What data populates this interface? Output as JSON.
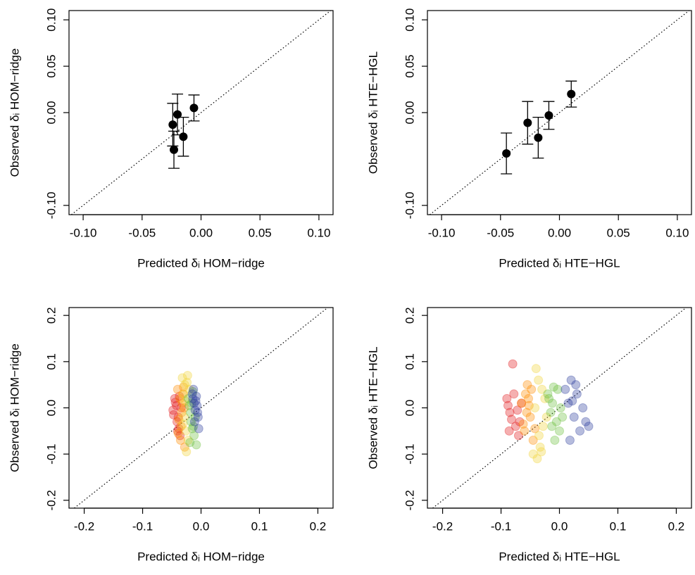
{
  "chart_data": [
    {
      "type": "errorbar",
      "xlabel": "Predicted δᵢ HOM−ridge",
      "ylabel": "Observed δᵢ HOM−ridge",
      "color": "#000000",
      "x": [
        -0.024,
        -0.023,
        -0.02,
        -0.015,
        -0.006
      ],
      "values": [
        -0.013,
        -0.04,
        -0.002,
        -0.026,
        0.005
      ],
      "errors": [
        0.023,
        0.02,
        0.022,
        0.021,
        0.014
      ],
      "xlim": [
        -0.112,
        0.112
      ],
      "ylim": [
        -0.11,
        0.11
      ],
      "xticks": [
        {
          "value": -0.1,
          "label": "-0.10"
        },
        -0.05,
        {
          "value": 0,
          "label": "0.00"
        },
        0.05,
        {
          "value": 0.1,
          "label": "0.10"
        }
      ],
      "yticks": [
        {
          "value": -0.1,
          "label": "-0.10"
        },
        {
          "value": 0,
          "label": "0.00"
        },
        0.05,
        {
          "value": 0.1,
          "label": "0.10"
        }
      ]
    },
    {
      "type": "errorbar",
      "xlabel": "Predicted δᵢ HTE−HGL",
      "ylabel": "Observed δᵢ HTE−HGL",
      "color": "#000000",
      "x": [
        -0.045,
        -0.027,
        -0.018,
        -0.009,
        0.01
      ],
      "values": [
        -0.044,
        -0.011,
        -0.027,
        -0.003,
        0.02
      ],
      "errors": [
        0.022,
        0.023,
        0.022,
        0.015,
        0.014
      ],
      "xlim": [
        -0.112,
        0.112
      ],
      "ylim": [
        -0.11,
        0.11
      ],
      "xticks": [
        {
          "value": -0.1,
          "label": "-0.10"
        },
        -0.05,
        {
          "value": 0,
          "label": "0.00"
        },
        0.05,
        {
          "value": 0.1,
          "label": "0.10"
        }
      ],
      "yticks": [
        {
          "value": -0.1,
          "label": "-0.10"
        },
        {
          "value": 0,
          "label": "0.00"
        },
        0.05,
        {
          "value": 0.1,
          "label": "0.10"
        }
      ]
    },
    {
      "type": "scatter",
      "xlabel": "Predicted δᵢ HOM−ridge",
      "ylabel": "Observed δᵢ HOM−ridge",
      "alpha": 0.35,
      "xlim": [
        -0.226,
        0.226
      ],
      "ylim": [
        -0.217,
        0.217
      ],
      "xticks": [
        -0.2,
        -0.1,
        {
          "value": 0,
          "label": "0.0"
        },
        0.1,
        0.2
      ],
      "yticks": [
        -0.2,
        -0.1,
        {
          "value": 0,
          "label": "0.0"
        },
        0.1,
        0.2
      ],
      "series": [
        {
          "color": "#e31a1c",
          "x": [
            -0.048,
            -0.044,
            -0.041,
            -0.038,
            -0.045,
            -0.036,
            -0.042,
            -0.039,
            -0.047,
            -0.034,
            -0.04,
            -0.037
          ],
          "values": [
            -0.005,
            0.012,
            -0.03,
            -0.045,
            0.02,
            -0.06,
            0.005,
            -0.02,
            -0.015,
            0.0,
            -0.05,
            0.025
          ]
        },
        {
          "color": "#ff8c00",
          "x": [
            -0.04,
            -0.035,
            -0.032,
            -0.038,
            -0.03,
            -0.034,
            -0.036,
            -0.028,
            -0.033,
            -0.031,
            -0.039,
            -0.029
          ],
          "values": [
            0.04,
            -0.07,
            0.01,
            -0.025,
            0.045,
            -0.04,
            0.02,
            -0.085,
            -0.01,
            0.03,
            -0.055,
            0.0
          ]
        },
        {
          "color": "#f2d43a",
          "x": [
            -0.032,
            -0.028,
            -0.025,
            -0.03,
            -0.022,
            -0.027,
            -0.024,
            -0.029,
            -0.026,
            -0.02,
            -0.031,
            -0.023
          ],
          "values": [
            0.065,
            0.05,
            -0.095,
            0.03,
            -0.07,
            0.015,
            0.055,
            -0.02,
            -0.05,
            0.04,
            -0.035,
            0.07
          ]
        },
        {
          "color": "#6cbf3f",
          "x": [
            -0.022,
            -0.018,
            -0.015,
            -0.02,
            -0.012,
            -0.017,
            -0.014,
            -0.019,
            -0.01,
            -0.016,
            -0.013,
            -0.008
          ],
          "values": [
            0.02,
            -0.01,
            -0.045,
            0.005,
            -0.06,
            -0.03,
            0.035,
            -0.075,
            -0.02,
            0.01,
            -0.04,
            -0.08
          ]
        },
        {
          "color": "#2f3f9e",
          "x": [
            -0.015,
            -0.012,
            -0.01,
            -0.008,
            -0.005,
            -0.013,
            -0.007,
            -0.011,
            -0.009,
            -0.006,
            -0.004,
            -0.014
          ],
          "values": [
            0.03,
            0.01,
            -0.005,
            0.025,
            -0.02,
            0.04,
            0.005,
            -0.03,
            0.015,
            -0.01,
            -0.045,
            0.02
          ]
        }
      ]
    },
    {
      "type": "scatter",
      "xlabel": "Predicted δᵢ HTE−HGL",
      "ylabel": "Observed δᵢ HTE−HGL",
      "alpha": 0.35,
      "xlim": [
        -0.226,
        0.226
      ],
      "ylim": [
        -0.217,
        0.217
      ],
      "xticks": [
        -0.2,
        -0.1,
        {
          "value": 0,
          "label": "0.0"
        },
        0.1,
        0.2
      ],
      "yticks": [
        -0.2,
        -0.1,
        {
          "value": 0,
          "label": "0.0"
        },
        0.1,
        0.2
      ],
      "series": [
        {
          "color": "#e31a1c",
          "x": [
            -0.09,
            -0.085,
            -0.08,
            -0.075,
            -0.088,
            -0.07,
            -0.082,
            -0.078,
            -0.072,
            -0.068,
            -0.086,
            -0.065
          ],
          "values": [
            0.02,
            -0.01,
            0.095,
            -0.04,
            0.005,
            -0.06,
            -0.025,
            0.03,
            -0.005,
            -0.03,
            -0.05,
            0.01
          ]
        },
        {
          "color": "#ff8c00",
          "x": [
            -0.065,
            -0.06,
            -0.055,
            -0.05,
            -0.058,
            -0.045,
            -0.052,
            -0.062,
            -0.048,
            -0.056,
            -0.042,
            -0.053
          ],
          "values": [
            0.01,
            -0.05,
            0.05,
            -0.02,
            0.03,
            -0.07,
            0.005,
            -0.035,
            0.04,
            -0.01,
            -0.045,
            0.02
          ]
        },
        {
          "color": "#f2d43a",
          "x": [
            -0.045,
            -0.04,
            -0.035,
            -0.03,
            -0.038,
            -0.025,
            -0.033,
            -0.042,
            -0.028,
            -0.036,
            -0.022,
            -0.031
          ],
          "values": [
            -0.1,
            0.085,
            -0.06,
            0.04,
            -0.11,
            0.02,
            -0.085,
            0.0,
            -0.04,
            0.06,
            -0.02,
            -0.095
          ]
        },
        {
          "color": "#6cbf3f",
          "x": [
            -0.02,
            -0.015,
            -0.01,
            -0.005,
            -0.012,
            0.0,
            -0.008,
            -0.018,
            0.005,
            -0.003,
            -0.013,
            0.002
          ],
          "values": [
            0.03,
            -0.01,
            0.045,
            -0.03,
            0.01,
            -0.05,
            -0.07,
            0.02,
            -0.02,
            0.04,
            -0.04,
            0.0
          ]
        },
        {
          "color": "#2f3f9e",
          "x": [
            0.01,
            0.015,
            0.02,
            0.025,
            0.03,
            0.035,
            0.04,
            0.045,
            0.018,
            0.028,
            0.05,
            0.022
          ],
          "values": [
            0.04,
            0.01,
            0.06,
            -0.02,
            0.03,
            -0.05,
            0.0,
            -0.03,
            -0.07,
            0.05,
            -0.04,
            0.015
          ]
        }
      ]
    }
  ]
}
